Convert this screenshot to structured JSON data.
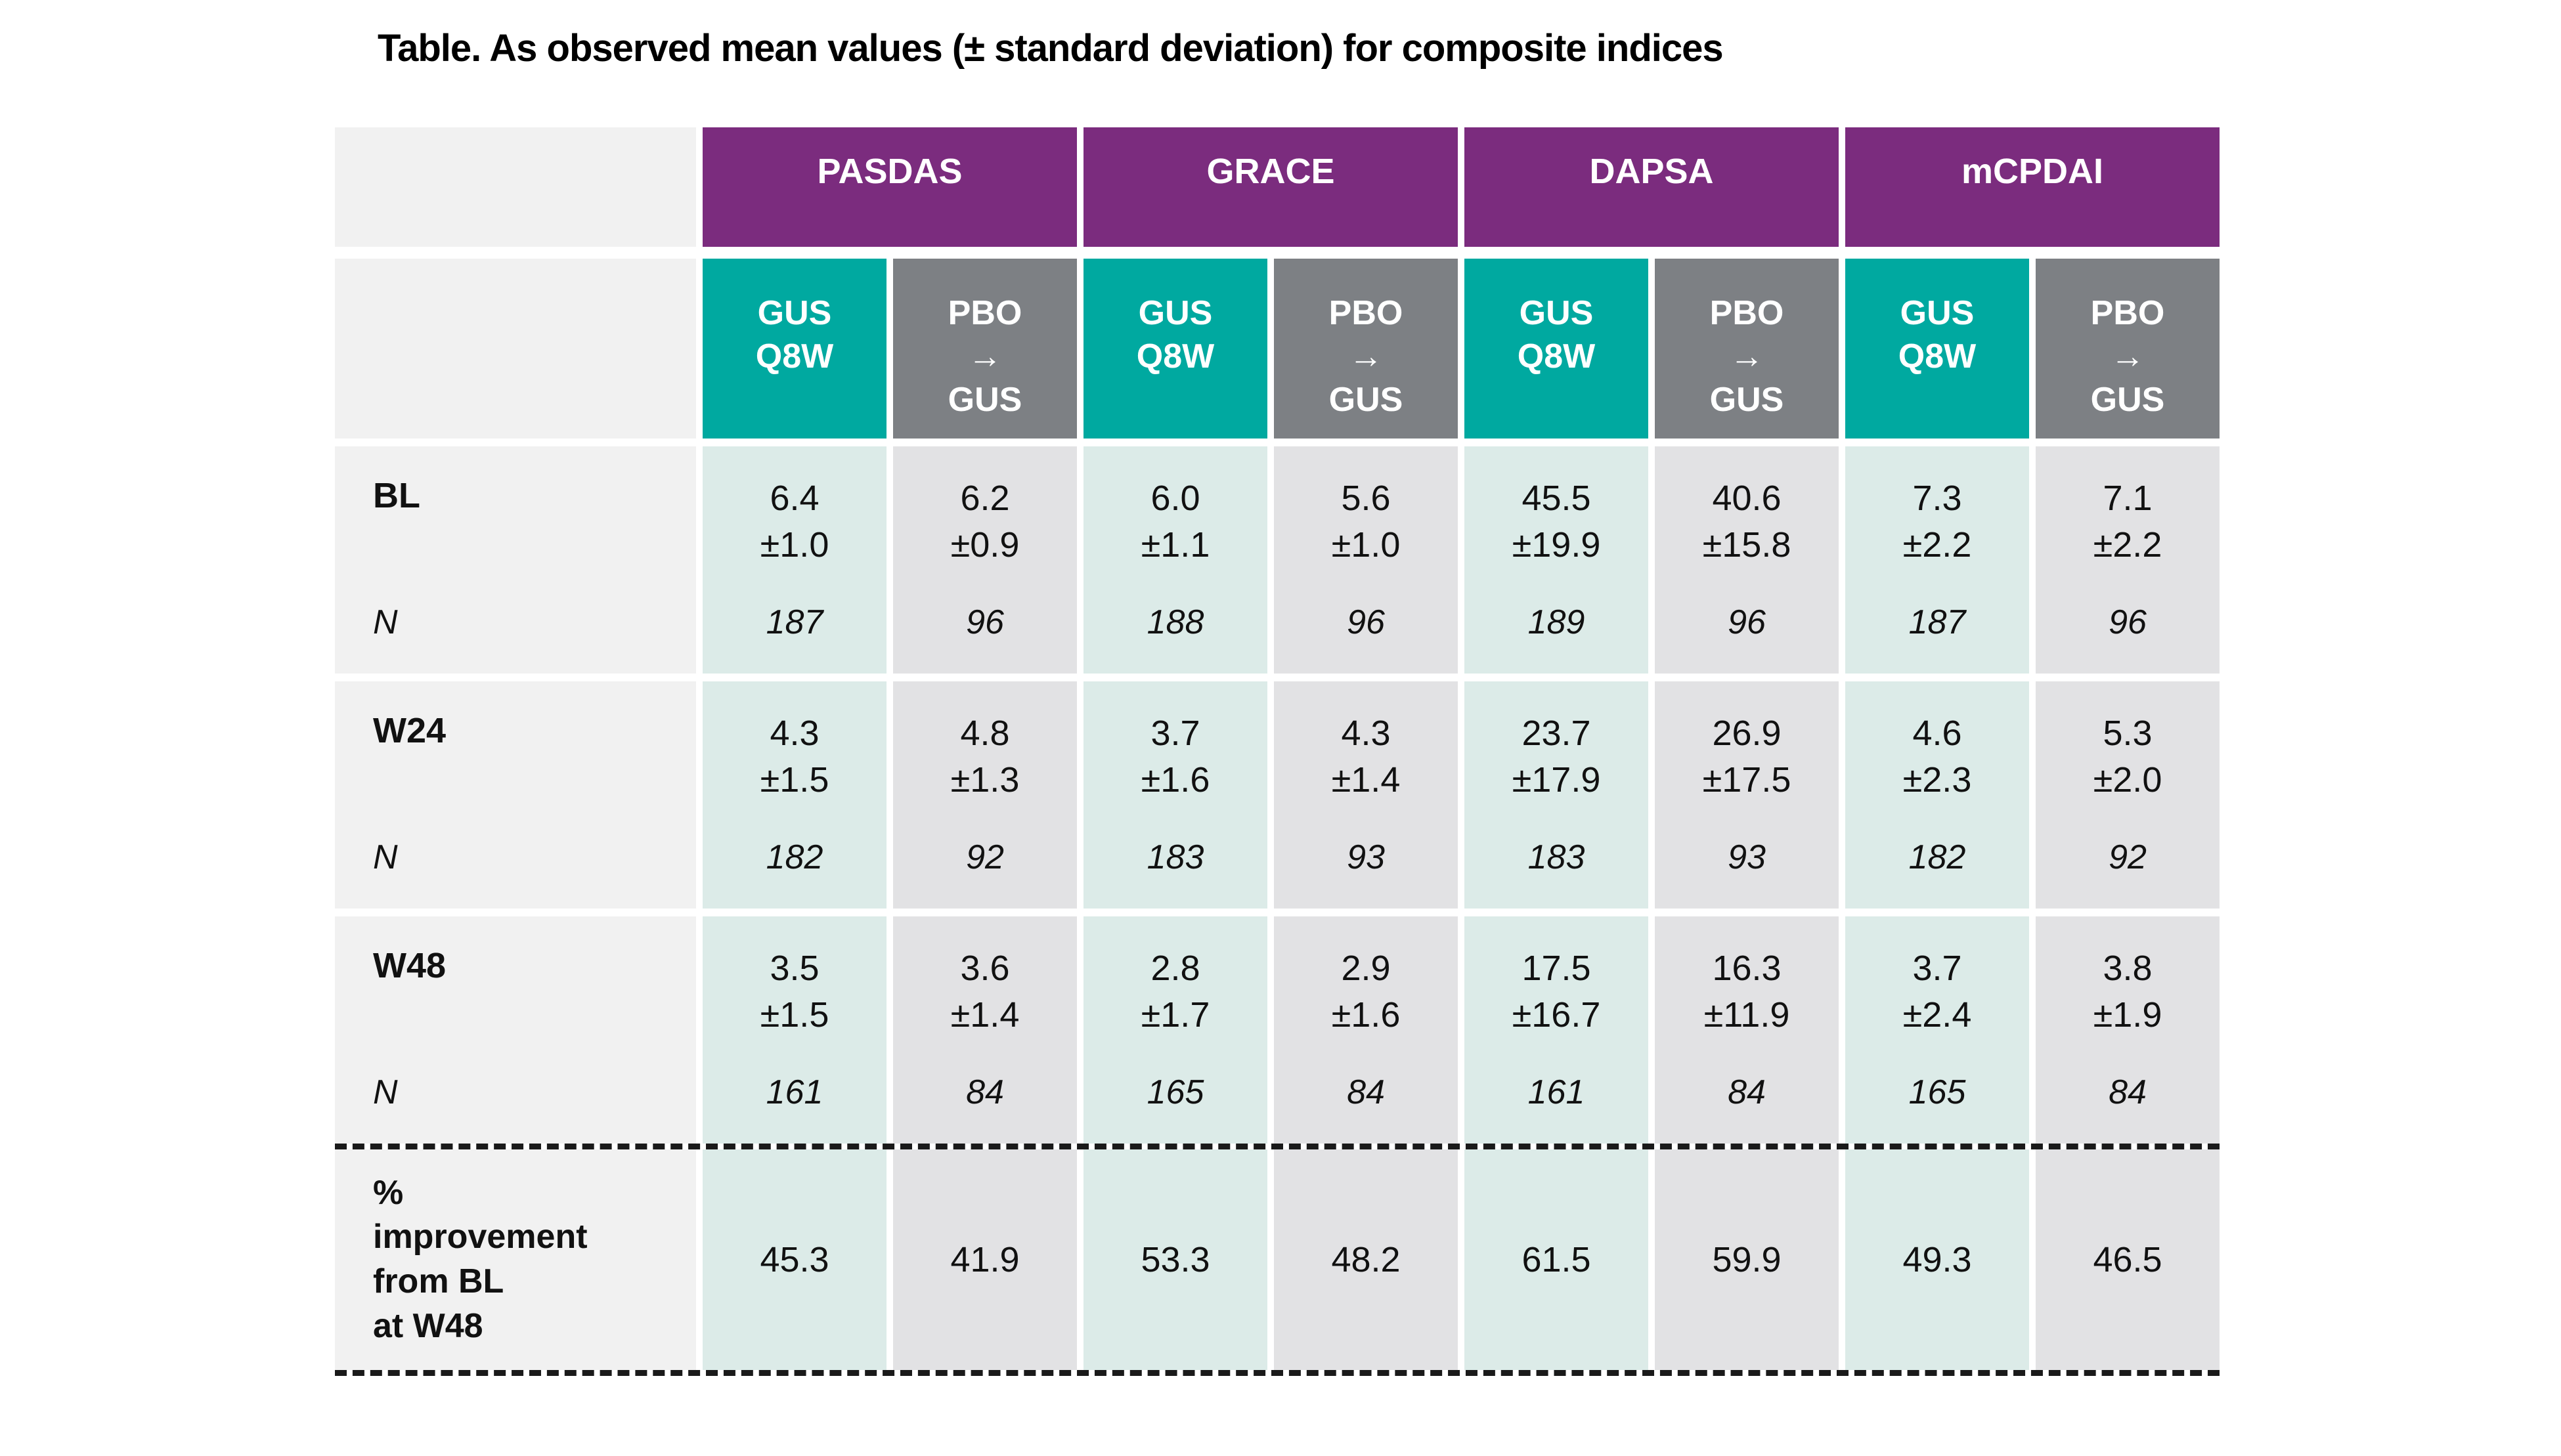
{
  "title": "Table. As observed mean values (± standard deviation) for composite indices",
  "colors": {
    "group_header_purple": "#7b2c7e",
    "gus_teal": "#00a9a0",
    "pbo_gray": "#7d8084",
    "gus_cell_light_teal": "#dcebe8",
    "pbo_cell_light_gray": "#e2e2e4",
    "label_column_gray": "#f1f1f1",
    "dashed_line": "#1a1a1a"
  },
  "table": {
    "groups": [
      "PASDAS",
      "GRACE",
      "DAPSA",
      "mCPDAI"
    ],
    "subcols": [
      {
        "variant": "gus",
        "lines": [
          "GUS",
          "Q8W"
        ]
      },
      {
        "variant": "pbo",
        "lines": [
          "PBO",
          "→",
          "GUS"
        ]
      },
      {
        "variant": "gus",
        "lines": [
          "GUS",
          "Q8W"
        ]
      },
      {
        "variant": "pbo",
        "lines": [
          "PBO",
          "→",
          "GUS"
        ]
      },
      {
        "variant": "gus",
        "lines": [
          "GUS",
          "Q8W"
        ]
      },
      {
        "variant": "pbo",
        "lines": [
          "PBO",
          "→",
          "GUS"
        ]
      },
      {
        "variant": "gus",
        "lines": [
          "GUS",
          "Q8W"
        ]
      },
      {
        "variant": "pbo",
        "lines": [
          "PBO",
          "→",
          "GUS"
        ]
      }
    ],
    "rows": [
      {
        "label": "BL",
        "n_label": "N",
        "cells": [
          {
            "mean": "6.4",
            "sd": "±1.0",
            "n": "187"
          },
          {
            "mean": "6.2",
            "sd": "±0.9",
            "n": "96"
          },
          {
            "mean": "6.0",
            "sd": "±1.1",
            "n": "188"
          },
          {
            "mean": "5.6",
            "sd": "±1.0",
            "n": "96"
          },
          {
            "mean": "45.5",
            "sd": "±19.9",
            "n": "189"
          },
          {
            "mean": "40.6",
            "sd": "±15.8",
            "n": "96"
          },
          {
            "mean": "7.3",
            "sd": "±2.2",
            "n": "187"
          },
          {
            "mean": "7.1",
            "sd": "±2.2",
            "n": "96"
          }
        ]
      },
      {
        "label": "W24",
        "n_label": "N",
        "cells": [
          {
            "mean": "4.3",
            "sd": "±1.5",
            "n": "182"
          },
          {
            "mean": "4.8",
            "sd": "±1.3",
            "n": "92"
          },
          {
            "mean": "3.7",
            "sd": "±1.6",
            "n": "183"
          },
          {
            "mean": "4.3",
            "sd": "±1.4",
            "n": "93"
          },
          {
            "mean": "23.7",
            "sd": "±17.9",
            "n": "183"
          },
          {
            "mean": "26.9",
            "sd": "±17.5",
            "n": "93"
          },
          {
            "mean": "4.6",
            "sd": "±2.3",
            "n": "182"
          },
          {
            "mean": "5.3",
            "sd": "±2.0",
            "n": "92"
          }
        ]
      },
      {
        "label": "W48",
        "n_label": "N",
        "cells": [
          {
            "mean": "3.5",
            "sd": "±1.5",
            "n": "161"
          },
          {
            "mean": "3.6",
            "sd": "±1.4",
            "n": "84"
          },
          {
            "mean": "2.8",
            "sd": "±1.7",
            "n": "165"
          },
          {
            "mean": "2.9",
            "sd": "±1.6",
            "n": "84"
          },
          {
            "mean": "17.5",
            "sd": "±16.7",
            "n": "161"
          },
          {
            "mean": "16.3",
            "sd": "±11.9",
            "n": "84"
          },
          {
            "mean": "3.7",
            "sd": "±2.4",
            "n": "165"
          },
          {
            "mean": "3.8",
            "sd": "±1.9",
            "n": "84"
          }
        ]
      }
    ],
    "pct": {
      "label_lines": [
        "%",
        "improvement",
        "from BL",
        "at W48"
      ],
      "values": [
        "45.3",
        "41.9",
        "53.3",
        "48.2",
        "61.5",
        "59.9",
        "49.3",
        "46.5"
      ]
    }
  },
  "chart_data": {
    "type": "table",
    "title": "Table. As observed mean values (± standard deviation) for composite indices",
    "column_groups": [
      "PASDAS",
      "GRACE",
      "DAPSA",
      "mCPDAI"
    ],
    "columns": [
      "PASDAS GUS Q8W",
      "PASDAS PBO→GUS",
      "GRACE GUS Q8W",
      "GRACE PBO→GUS",
      "DAPSA GUS Q8W",
      "DAPSA PBO→GUS",
      "mCPDAI GUS Q8W",
      "mCPDAI PBO→GUS"
    ],
    "rows": [
      {
        "label": "BL",
        "mean": [
          6.4,
          6.2,
          6.0,
          5.6,
          45.5,
          40.6,
          7.3,
          7.1
        ],
        "sd": [
          1.0,
          0.9,
          1.1,
          1.0,
          19.9,
          15.8,
          2.2,
          2.2
        ],
        "n": [
          187,
          96,
          188,
          96,
          189,
          96,
          187,
          96
        ]
      },
      {
        "label": "W24",
        "mean": [
          4.3,
          4.8,
          3.7,
          4.3,
          23.7,
          26.9,
          4.6,
          5.3
        ],
        "sd": [
          1.5,
          1.3,
          1.6,
          1.4,
          17.9,
          17.5,
          2.3,
          2.0
        ],
        "n": [
          182,
          92,
          183,
          93,
          183,
          93,
          182,
          92
        ]
      },
      {
        "label": "W48",
        "mean": [
          3.5,
          3.6,
          2.8,
          2.9,
          17.5,
          16.3,
          3.7,
          3.8
        ],
        "sd": [
          1.5,
          1.4,
          1.7,
          1.6,
          16.7,
          11.9,
          2.4,
          1.9
        ],
        "n": [
          161,
          84,
          165,
          84,
          161,
          84,
          165,
          84
        ]
      },
      {
        "label": "% improvement from BL at W48",
        "values": [
          45.3,
          41.9,
          53.3,
          48.2,
          61.5,
          59.9,
          49.3,
          46.5
        ]
      }
    ]
  }
}
